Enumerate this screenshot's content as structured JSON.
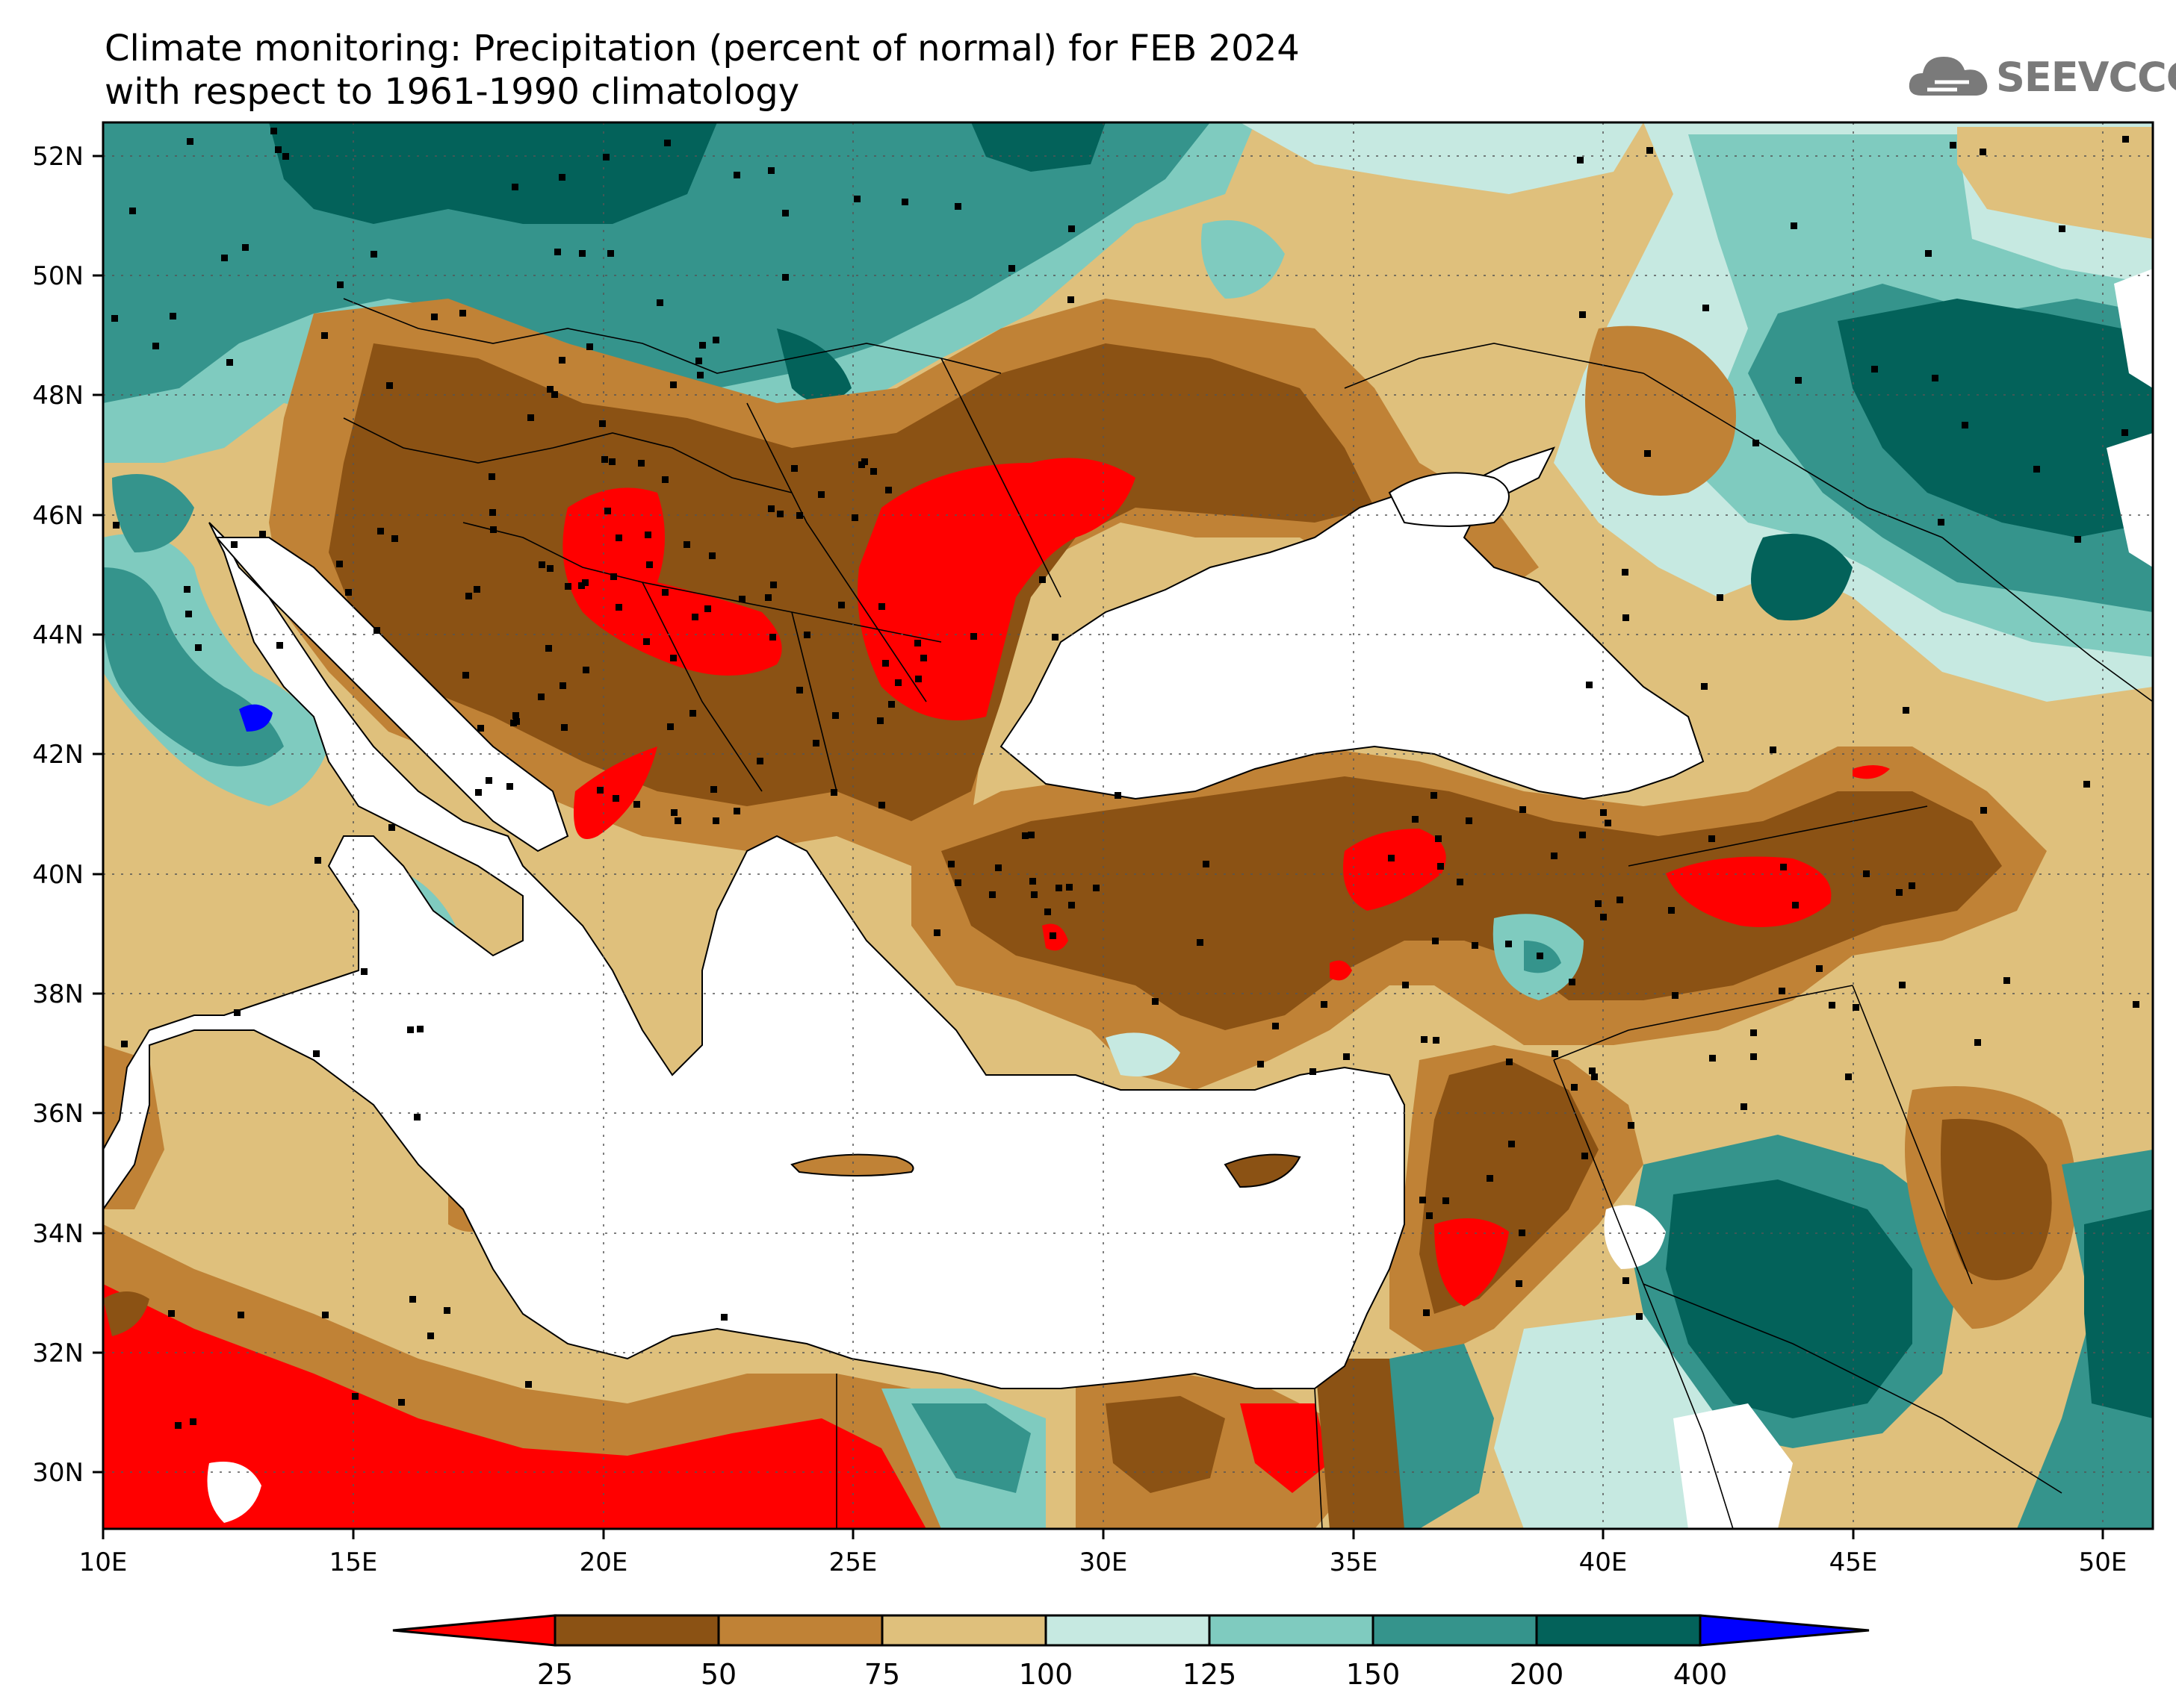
{
  "title": {
    "line1": "Climate monitoring: Precipitation (percent of normal) for FEB 2024",
    "line2": "with respect to 1961-1990 climatology"
  },
  "logo": {
    "text": "SEEVCCC",
    "icon": "cloud-icon"
  },
  "map": {
    "lon_range": [
      10,
      51
    ],
    "lat_range": [
      29,
      52.5
    ],
    "lat_ticks": [
      "30N",
      "32N",
      "34N",
      "36N",
      "38N",
      "40N",
      "42N",
      "44N",
      "46N",
      "48N",
      "50N",
      "52N"
    ],
    "lon_ticks": [
      "10E",
      "15E",
      "20E",
      "25E",
      "30E",
      "35E",
      "40E",
      "45E",
      "50E"
    ],
    "grid": "dotted"
  },
  "colorbar": {
    "labels": [
      "25",
      "50",
      "75",
      "100",
      "125",
      "150",
      "200",
      "400"
    ],
    "colors": [
      "#ff0000",
      "#8b5214",
      "#c08236",
      "#dfc07c",
      "#c6e9e1",
      "#7fcbbf",
      "#35948c",
      "#03625a",
      "#0000ff"
    ]
  }
}
